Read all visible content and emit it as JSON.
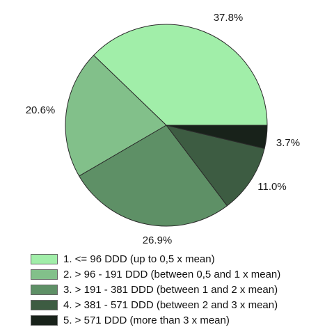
{
  "chart_data": {
    "type": "pie",
    "title": "",
    "start_direction": "east",
    "direction": "counterclockwise",
    "slices": [
      {
        "label": "1. <= 96 DDD (up to 0,5 x mean)",
        "value": 37.8,
        "data_label": "37.8%",
        "color": "#A1EEA9"
      },
      {
        "label": "2. > 96 - 191 DDD (between 0,5 and 1 x mean)",
        "value": 20.6,
        "data_label": "20.6%",
        "color": "#82C08A"
      },
      {
        "label": "3. > 191 - 381 DDD (between 1 and 2 x mean)",
        "value": 26.9,
        "data_label": "26.9%",
        "color": "#5E9066"
      },
      {
        "label": "4. > 381 - 571 DDD (between 2 and 3 x mean)",
        "value": 11.0,
        "data_label": "11.0%",
        "color": "#3D5C42"
      },
      {
        "label": "5. > 571 DDD (more than 3 x mean)",
        "value": 3.7,
        "data_label": "3.7%",
        "color": "#18221A"
      }
    ],
    "legend_placement": "bottom"
  }
}
